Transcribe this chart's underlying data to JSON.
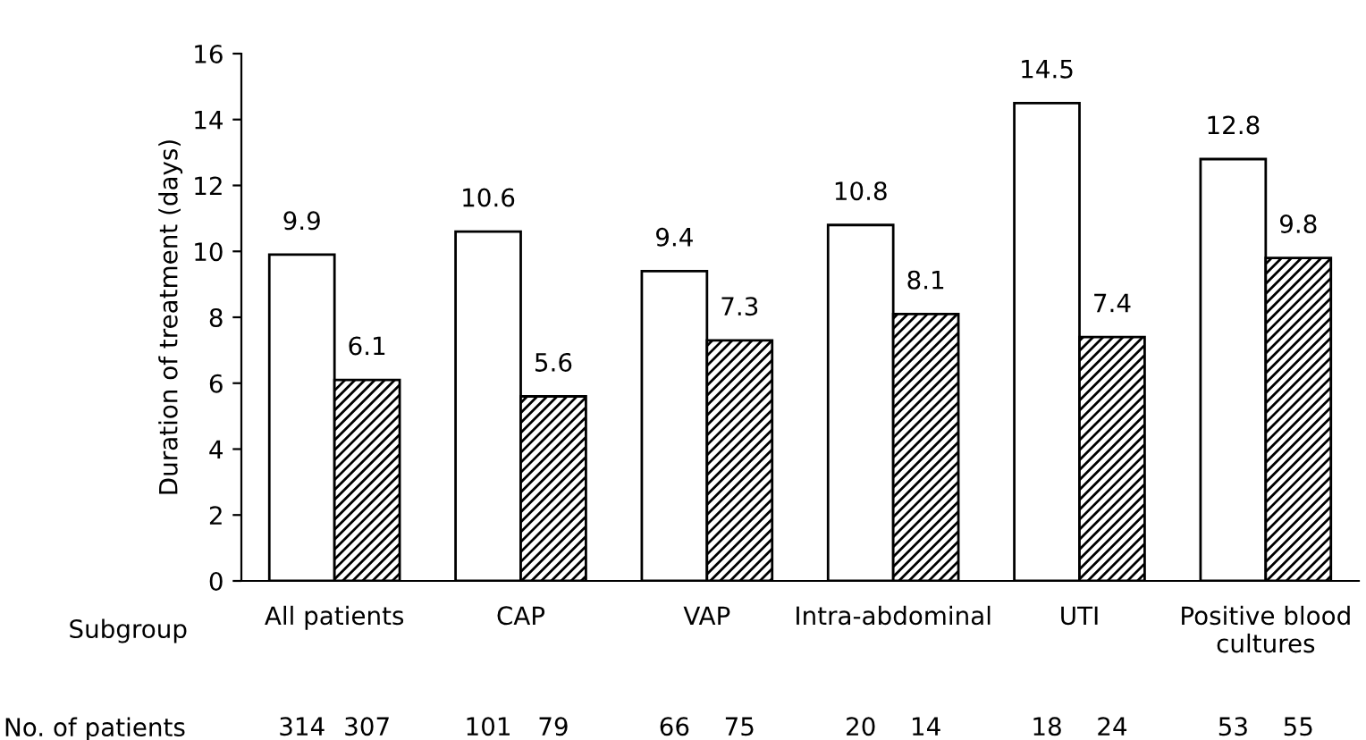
{
  "chart_data": {
    "type": "bar",
    "ylabel": "Duration of treatment (days)",
    "xlabel": "Subgroup",
    "categories": [
      "All patients",
      "CAP",
      "VAP",
      "Intra-abdominal",
      "UTI",
      "Positive blood\ncultures"
    ],
    "series": [
      {
        "color": "#ffffff",
        "values": [
          9.9,
          10.6,
          9.4,
          10.8,
          14.5,
          12.8
        ]
      },
      {
        "color": "#000000",
        "values": [
          6.1,
          5.6,
          7.3,
          8.1,
          7.4,
          9.8
        ]
      }
    ],
    "ylim": [
      0,
      16
    ],
    "yticks": [
      0,
      2,
      4,
      6,
      8,
      10,
      12,
      14,
      16
    ],
    "data_labels": true,
    "grid": false,
    "legend": false,
    "annotations": [
      "No. of patients",
      "314",
      "307",
      "101",
      "79",
      "66",
      "75",
      "20",
      "14",
      "18",
      "24",
      "53",
      "55"
    ]
  }
}
